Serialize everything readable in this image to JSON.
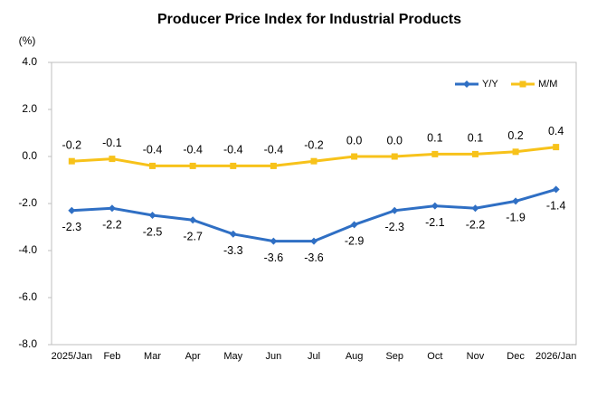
{
  "chart_data": {
    "type": "line",
    "title": "Producer Price Index for Industrial Products",
    "y_label": "(%)",
    "categories": [
      "2025/Jan",
      "Feb",
      "Mar",
      "Apr",
      "May",
      "Jun",
      "Jul",
      "Aug",
      "Sep",
      "Oct",
      "Nov",
      "Dec",
      "2026/Jan"
    ],
    "series": [
      {
        "name": "Y/Y",
        "color": "#2f6fc4",
        "marker": "diamond",
        "label_position": "below",
        "values": [
          -2.3,
          -2.2,
          -2.5,
          -2.7,
          -3.3,
          -3.6,
          -3.6,
          -2.9,
          -2.3,
          -2.1,
          -2.2,
          -1.9,
          -1.4
        ]
      },
      {
        "name": "M/M",
        "color": "#f7c21a",
        "marker": "square",
        "label_position": "above",
        "values": [
          -0.2,
          -0.1,
          -0.4,
          -0.4,
          -0.4,
          -0.4,
          -0.2,
          0.0,
          0.0,
          0.1,
          0.1,
          0.2,
          0.4
        ],
        "value_labels": [
          "-0.2",
          "-0.1",
          "-0.4",
          "-0.4",
          "-0.4",
          "-0.4",
          "-0.2",
          "0.0",
          "0.0",
          "0.1",
          "0.1",
          "0.2",
          "0.4"
        ]
      }
    ],
    "ylim": [
      -8,
      4
    ],
    "yticks": [
      {
        "value": 4,
        "label": "4.0"
      },
      {
        "value": 2,
        "label": "2.0"
      },
      {
        "value": 0,
        "label": "0.0"
      },
      {
        "value": -2,
        "label": "-2.0"
      },
      {
        "value": -4,
        "label": "-4.0"
      },
      {
        "value": -6,
        "label": "-6.0"
      },
      {
        "value": -8,
        "label": "-8.0"
      }
    ],
    "grid": false,
    "legend": "top-right"
  }
}
